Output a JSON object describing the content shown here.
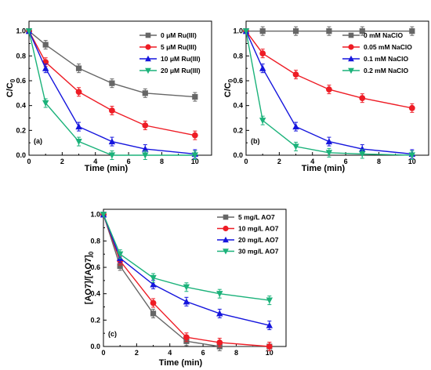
{
  "chart_data": [
    {
      "type": "line",
      "panel_label": "(a)",
      "xlabel": "Time (min)",
      "ylabel_main": "C/C",
      "ylabel_sub": "0",
      "xlim": [
        0,
        11
      ],
      "ylim": [
        0,
        1.08
      ],
      "xticks": [
        "0",
        "2",
        "4",
        "6",
        "8",
        "10"
      ],
      "yticks": [
        "0.0",
        "0.2",
        "0.4",
        "0.6",
        "0.8",
        "1.0"
      ],
      "legend_position": "top-right",
      "x": [
        0,
        1,
        3,
        5,
        7,
        10
      ],
      "series": [
        {
          "name": "0 μM Ru(III)",
          "color": "#666666",
          "marker": "square",
          "values": [
            1.0,
            0.89,
            0.7,
            0.58,
            0.5,
            0.47
          ]
        },
        {
          "name": "5 μM Ru(III)",
          "color": "#ee1c25",
          "marker": "circle",
          "values": [
            1.0,
            0.75,
            0.51,
            0.36,
            0.24,
            0.16
          ]
        },
        {
          "name": "10 μM Ru(III)",
          "color": "#1515dd",
          "marker": "triangle-up",
          "values": [
            1.0,
            0.7,
            0.23,
            0.11,
            0.05,
            0.01
          ]
        },
        {
          "name": "20 μM Ru(III)",
          "color": "#1bb27a",
          "marker": "triangle-down",
          "values": [
            1.0,
            0.42,
            0.11,
            0.0,
            0.0,
            0.0
          ]
        }
      ]
    },
    {
      "type": "line",
      "panel_label": "(b)",
      "xlabel": "Time (min)",
      "ylabel_main": "C/C",
      "ylabel_sub": "0",
      "xlim": [
        0,
        11
      ],
      "ylim": [
        0,
        1.08
      ],
      "xticks": [
        "0",
        "2",
        "4",
        "6",
        "8",
        "10"
      ],
      "yticks": [
        "0.0",
        "0.2",
        "0.4",
        "0.6",
        "0.8",
        "1.0"
      ],
      "legend_position": "top-right",
      "x": [
        0,
        1,
        3,
        5,
        7,
        10
      ],
      "series": [
        {
          "name": "0 mM NaClO",
          "color": "#666666",
          "marker": "square",
          "values": [
            1.0,
            1.0,
            1.0,
            1.0,
            1.0,
            1.0
          ]
        },
        {
          "name": "0.05 mM NaClO",
          "color": "#ee1c25",
          "marker": "circle",
          "values": [
            1.0,
            0.82,
            0.65,
            0.53,
            0.46,
            0.38
          ]
        },
        {
          "name": "0.1 mM NaClO",
          "color": "#1515dd",
          "marker": "triangle-up",
          "values": [
            1.0,
            0.7,
            0.23,
            0.11,
            0.05,
            0.01
          ]
        },
        {
          "name": "0.2 mM NaClO",
          "color": "#1bb27a",
          "marker": "triangle-down",
          "values": [
            1.0,
            0.28,
            0.07,
            0.02,
            0.01,
            0.0
          ]
        }
      ]
    },
    {
      "type": "line",
      "panel_label": "(c)",
      "xlabel": "Time (min)",
      "ylabel_main": "[AO7]/[AO7]",
      "ylabel_sub": "0",
      "xlim": [
        0,
        11
      ],
      "ylim": [
        0,
        1.04
      ],
      "xticks": [
        "0",
        "2",
        "4",
        "6",
        "8",
        "10"
      ],
      "yticks": [
        "0.0",
        "0.2",
        "0.4",
        "0.6",
        "0.8",
        "1.0"
      ],
      "legend_position": "top-right",
      "x": [
        0,
        1,
        3,
        5,
        7,
        10
      ],
      "series": [
        {
          "name": "5 mg/L AO7",
          "color": "#666666",
          "marker": "square",
          "values": [
            1.0,
            0.61,
            0.25,
            0.04,
            0.0,
            0.0
          ]
        },
        {
          "name": "10 mg/L AO7",
          "color": "#ee1c25",
          "marker": "circle",
          "values": [
            1.0,
            0.65,
            0.33,
            0.07,
            0.03,
            0.0
          ]
        },
        {
          "name": "20 mg/L AO7",
          "color": "#1515dd",
          "marker": "triangle-up",
          "values": [
            1.0,
            0.67,
            0.47,
            0.34,
            0.25,
            0.16
          ]
        },
        {
          "name": "30 mg/L AO7",
          "color": "#1bb27a",
          "marker": "triangle-down",
          "values": [
            1.0,
            0.7,
            0.52,
            0.45,
            0.4,
            0.35
          ]
        }
      ]
    }
  ]
}
